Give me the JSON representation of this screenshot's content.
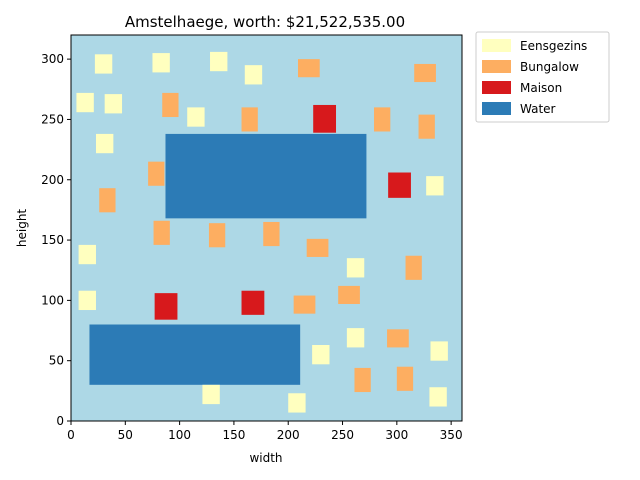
{
  "chart_data": {
    "type": "heatmap",
    "title": "Amstelhaege, worth: $21,522,535.00",
    "xlabel": "width",
    "ylabel": "height",
    "xlim": [
      0,
      360
    ],
    "ylim": [
      0,
      320
    ],
    "xticks": [
      0,
      50,
      100,
      150,
      200,
      250,
      300,
      350
    ],
    "yticks": [
      0,
      50,
      100,
      150,
      200,
      250,
      300
    ],
    "background_color": "#add8e6",
    "legend_position": "outside-top-right",
    "legend": [
      {
        "label": "Eensgezins",
        "color": "#ffffbf"
      },
      {
        "label": "Bungalow",
        "color": "#fdae61"
      },
      {
        "label": "Maison",
        "color": "#d7191c"
      },
      {
        "label": "Water",
        "color": "#2c7bb6"
      }
    ],
    "water": [
      {
        "x0": 17,
        "x1": 211,
        "y0": 30,
        "y1": 80
      },
      {
        "x0": 87,
        "x1": 272,
        "y0": 168,
        "y1": 238
      }
    ],
    "houses": [
      {
        "type": "Eensgezins",
        "x0": 22,
        "x1": 38,
        "y0": 288,
        "y1": 304
      },
      {
        "type": "Eensgezins",
        "x0": 75,
        "x1": 91,
        "y0": 289,
        "y1": 305
      },
      {
        "type": "Eensgezins",
        "x0": 128,
        "x1": 144,
        "y0": 290,
        "y1": 306
      },
      {
        "type": "Eensgezins",
        "x0": 160,
        "x1": 176,
        "y0": 279,
        "y1": 295
      },
      {
        "type": "Eensgezins",
        "x0": 5,
        "x1": 21,
        "y0": 256,
        "y1": 272
      },
      {
        "type": "Eensgezins",
        "x0": 31,
        "x1": 47,
        "y0": 255,
        "y1": 271
      },
      {
        "type": "Eensgezins",
        "x0": 107,
        "x1": 123,
        "y0": 244,
        "y1": 260
      },
      {
        "type": "Eensgezins",
        "x0": 23,
        "x1": 39,
        "y0": 222,
        "y1": 238
      },
      {
        "type": "Eensgezins",
        "x0": 327,
        "x1": 343,
        "y0": 187,
        "y1": 203
      },
      {
        "type": "Eensgezins",
        "x0": 7,
        "x1": 23,
        "y0": 130,
        "y1": 146
      },
      {
        "type": "Eensgezins",
        "x0": 254,
        "x1": 270,
        "y0": 119,
        "y1": 135
      },
      {
        "type": "Eensgezins",
        "x0": 7,
        "x1": 23,
        "y0": 92,
        "y1": 108
      },
      {
        "type": "Eensgezins",
        "x0": 254,
        "x1": 270,
        "y0": 61,
        "y1": 77
      },
      {
        "type": "Eensgezins",
        "x0": 222,
        "x1": 238,
        "y0": 47,
        "y1": 63
      },
      {
        "type": "Eensgezins",
        "x0": 331,
        "x1": 347,
        "y0": 50,
        "y1": 66
      },
      {
        "type": "Eensgezins",
        "x0": 121,
        "x1": 137,
        "y0": 14,
        "y1": 30
      },
      {
        "type": "Eensgezins",
        "x0": 200,
        "x1": 216,
        "y0": 7,
        "y1": 23
      },
      {
        "type": "Eensgezins",
        "x0": 330,
        "x1": 346,
        "y0": 12,
        "y1": 28
      },
      {
        "type": "Bungalow",
        "x0": 209,
        "x1": 229,
        "y0": 285,
        "y1": 300
      },
      {
        "type": "Bungalow",
        "x0": 316,
        "x1": 336,
        "y0": 281,
        "y1": 296
      },
      {
        "type": "Bungalow",
        "x0": 84,
        "x1": 99,
        "y0": 252,
        "y1": 272
      },
      {
        "type": "Bungalow",
        "x0": 157,
        "x1": 172,
        "y0": 240,
        "y1": 260
      },
      {
        "type": "Bungalow",
        "x0": 279,
        "x1": 294,
        "y0": 240,
        "y1": 260
      },
      {
        "type": "Bungalow",
        "x0": 320,
        "x1": 335,
        "y0": 234,
        "y1": 254
      },
      {
        "type": "Bungalow",
        "x0": 71,
        "x1": 86,
        "y0": 195,
        "y1": 215
      },
      {
        "type": "Bungalow",
        "x0": 26,
        "x1": 41,
        "y0": 173,
        "y1": 193
      },
      {
        "type": "Bungalow",
        "x0": 76,
        "x1": 91,
        "y0": 146,
        "y1": 166
      },
      {
        "type": "Bungalow",
        "x0": 127,
        "x1": 142,
        "y0": 144,
        "y1": 164
      },
      {
        "type": "Bungalow",
        "x0": 177,
        "x1": 192,
        "y0": 145,
        "y1": 165
      },
      {
        "type": "Bungalow",
        "x0": 217,
        "x1": 237,
        "y0": 136,
        "y1": 151
      },
      {
        "type": "Bungalow",
        "x0": 308,
        "x1": 323,
        "y0": 117,
        "y1": 137
      },
      {
        "type": "Bungalow",
        "x0": 246,
        "x1": 266,
        "y0": 97,
        "y1": 112
      },
      {
        "type": "Bungalow",
        "x0": 205,
        "x1": 225,
        "y0": 89,
        "y1": 104
      },
      {
        "type": "Bungalow",
        "x0": 291,
        "x1": 311,
        "y0": 61,
        "y1": 76
      },
      {
        "type": "Bungalow",
        "x0": 261,
        "x1": 276,
        "y0": 24,
        "y1": 44
      },
      {
        "type": "Bungalow",
        "x0": 300,
        "x1": 315,
        "y0": 25,
        "y1": 45
      },
      {
        "type": "Maison",
        "x0": 223,
        "x1": 244,
        "y0": 239,
        "y1": 262
      },
      {
        "type": "Maison",
        "x0": 292,
        "x1": 313,
        "y0": 185,
        "y1": 206
      },
      {
        "type": "Maison",
        "x0": 77,
        "x1": 98,
        "y0": 84,
        "y1": 106
      },
      {
        "type": "Maison",
        "x0": 157,
        "x1": 178,
        "y0": 88,
        "y1": 108
      }
    ]
  }
}
